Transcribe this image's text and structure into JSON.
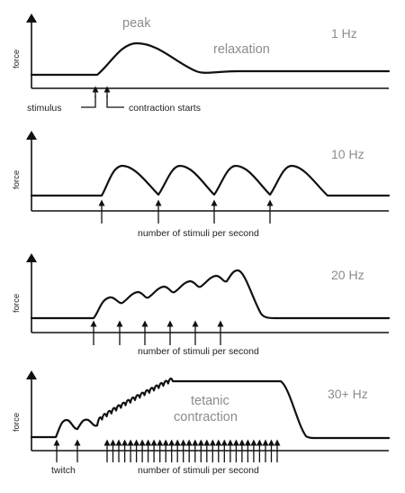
{
  "panels": [
    {
      "frequency": "1 Hz",
      "ylabel": "force",
      "annotations": {
        "peak": "peak",
        "relaxation": "relaxation"
      },
      "stimulus_label": "stimulus",
      "contraction_label": "contraction starts",
      "stimulus_count": 1
    },
    {
      "frequency": "10 Hz",
      "ylabel": "force",
      "caption": "number of stimuli per second",
      "stimulus_count": 4
    },
    {
      "frequency": "20 Hz",
      "ylabel": "force",
      "caption": "number of stimuli per second",
      "stimulus_count": 6
    },
    {
      "frequency": "30+ Hz",
      "ylabel": "force",
      "caption": "number of stimuli per second",
      "annotation_line1": "tetanic",
      "annotation_line2": "contraction",
      "twitch_label": "twitch",
      "stimulus_count": 30
    }
  ]
}
